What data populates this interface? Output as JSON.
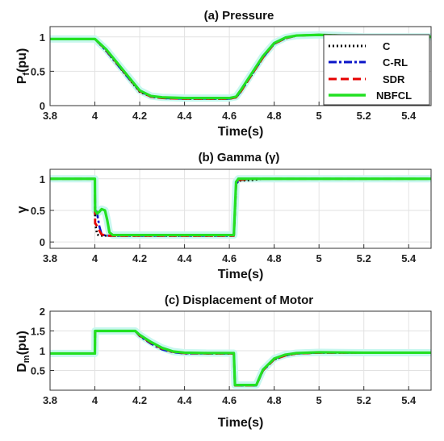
{
  "chart_data": [
    {
      "type": "line",
      "title": "(a) Pressure",
      "xlabel": "Time(s)",
      "ylabel": "P",
      "ylabel_sub": "f",
      "ylabel_suffix": "(pu)",
      "xlim": [
        3.8,
        5.5
      ],
      "ylim": [
        0,
        1.15
      ],
      "xticks": [
        "3.8",
        "4",
        "4.2",
        "4.4",
        "4.6",
        "4.8",
        "5",
        "5.2",
        "5.4"
      ],
      "xtick_values": [
        3.8,
        4.0,
        4.2,
        4.4,
        4.6,
        4.8,
        5.0,
        5.2,
        5.4
      ],
      "yticks": [
        "0",
        "0.5",
        "1"
      ],
      "ytick_values": [
        0,
        0.5,
        1
      ],
      "grid": true,
      "legend_position": "top-right",
      "legend": [
        "C",
        "C-RL",
        "SDR",
        "NBFCL"
      ],
      "series": [
        {
          "name": "C",
          "color": "#000000",
          "style": "dotted",
          "x": [
            3.8,
            4.0,
            4.05,
            4.1,
            4.15,
            4.2,
            4.25,
            4.3,
            4.4,
            4.5,
            4.6,
            4.63,
            4.65,
            4.7,
            4.75,
            4.8,
            4.85,
            4.9,
            5.0,
            5.1,
            5.2,
            5.5
          ],
          "y": [
            0.97,
            0.97,
            0.8,
            0.6,
            0.4,
            0.2,
            0.13,
            0.11,
            0.1,
            0.1,
            0.1,
            0.12,
            0.2,
            0.45,
            0.7,
            0.9,
            0.98,
            1.02,
            1.03,
            1.02,
            1.0,
            1.0
          ]
        },
        {
          "name": "C-RL",
          "color": "#0a14c8",
          "style": "dashdot",
          "x": [
            3.8,
            4.0,
            4.05,
            4.1,
            4.15,
            4.2,
            4.25,
            4.3,
            4.4,
            4.5,
            4.6,
            4.63,
            4.65,
            4.7,
            4.75,
            4.8,
            4.85,
            4.9,
            5.0,
            5.1,
            5.2,
            5.5
          ],
          "y": [
            0.97,
            0.97,
            0.8,
            0.6,
            0.4,
            0.21,
            0.13,
            0.11,
            0.1,
            0.1,
            0.1,
            0.12,
            0.2,
            0.45,
            0.7,
            0.9,
            0.98,
            1.02,
            1.03,
            1.02,
            1.0,
            1.0
          ]
        },
        {
          "name": "SDR",
          "color": "#e60000",
          "style": "dashed",
          "x": [
            3.8,
            4.0,
            4.05,
            4.1,
            4.15,
            4.2,
            4.25,
            4.3,
            4.4,
            4.5,
            4.6,
            4.63,
            4.65,
            4.7,
            4.75,
            4.8,
            4.85,
            4.9,
            5.0,
            5.1,
            5.2,
            5.5
          ],
          "y": [
            0.97,
            0.97,
            0.81,
            0.61,
            0.41,
            0.21,
            0.13,
            0.11,
            0.1,
            0.1,
            0.1,
            0.12,
            0.2,
            0.45,
            0.7,
            0.9,
            0.98,
            1.02,
            1.03,
            1.02,
            1.0,
            1.0
          ]
        },
        {
          "name": "NBFCL",
          "color": "#22e022",
          "style": "solid",
          "x": [
            3.8,
            4.0,
            4.05,
            4.1,
            4.15,
            4.2,
            4.25,
            4.3,
            4.4,
            4.5,
            4.6,
            4.63,
            4.65,
            4.7,
            4.75,
            4.8,
            4.85,
            4.9,
            5.0,
            5.1,
            5.2,
            5.5
          ],
          "y": [
            0.97,
            0.97,
            0.82,
            0.62,
            0.42,
            0.22,
            0.14,
            0.12,
            0.11,
            0.11,
            0.11,
            0.13,
            0.22,
            0.47,
            0.72,
            0.91,
            0.99,
            1.02,
            1.03,
            1.02,
            1.0,
            1.0
          ]
        }
      ]
    },
    {
      "type": "line",
      "title": "(b) Gamma (γ)",
      "xlabel": "Time(s)",
      "ylabel": "γ",
      "xlim": [
        3.8,
        5.5
      ],
      "ylim": [
        -0.1,
        1.15
      ],
      "xticks": [
        "3.8",
        "4",
        "4.2",
        "4.4",
        "4.6",
        "4.8",
        "5",
        "5.2",
        "5.4"
      ],
      "xtick_values": [
        3.8,
        4.0,
        4.2,
        4.4,
        4.6,
        4.8,
        5.0,
        5.2,
        5.4
      ],
      "yticks": [
        "0",
        "0.5",
        "1"
      ],
      "ytick_values": [
        0,
        0.5,
        1
      ],
      "grid": true,
      "series": [
        {
          "name": "C",
          "color": "#000000",
          "style": "dotted",
          "x": [
            3.8,
            4.0,
            4.001,
            4.01,
            4.02,
            4.04,
            4.06,
            4.1,
            4.3,
            4.5,
            4.62,
            4.63,
            4.64,
            4.7,
            4.75,
            5.0,
            5.5
          ],
          "y": [
            1,
            1,
            0.3,
            0.12,
            0.1,
            0.1,
            0.1,
            0.1,
            0.1,
            0.1,
            0.1,
            0.9,
            0.97,
            0.98,
            1,
            1,
            1
          ]
        },
        {
          "name": "C-RL",
          "color": "#0a14c8",
          "style": "dashdot",
          "x": [
            3.8,
            4.0,
            4.001,
            4.01,
            4.02,
            4.03,
            4.05,
            4.08,
            4.1,
            4.3,
            4.5,
            4.62,
            4.63,
            4.64,
            4.7,
            5.0,
            5.5
          ],
          "y": [
            1,
            1,
            0.55,
            0.45,
            0.25,
            0.12,
            0.1,
            0.1,
            0.1,
            0.1,
            0.1,
            0.1,
            0.9,
            0.98,
            1,
            1,
            1
          ]
        },
        {
          "name": "SDR",
          "color": "#e60000",
          "style": "dashed",
          "x": [
            3.8,
            4.0,
            4.001,
            4.01,
            4.02,
            4.03,
            4.05,
            4.08,
            4.1,
            4.3,
            4.5,
            4.62,
            4.63,
            4.64,
            4.7,
            5.0,
            5.5
          ],
          "y": [
            1,
            1,
            0.3,
            0.25,
            0.18,
            0.12,
            0.1,
            0.1,
            0.1,
            0.1,
            0.1,
            0.1,
            0.9,
            0.98,
            1,
            1,
            1
          ]
        },
        {
          "name": "NBFCL",
          "color": "#22e022",
          "style": "solid",
          "x": [
            3.8,
            4.0,
            4.001,
            4.01,
            4.02,
            4.03,
            4.045,
            4.055,
            4.065,
            4.08,
            4.1,
            4.3,
            4.5,
            4.62,
            4.63,
            4.64,
            4.7,
            5.0,
            5.5
          ],
          "y": [
            1,
            1,
            0.5,
            0.45,
            0.48,
            0.52,
            0.5,
            0.35,
            0.15,
            0.11,
            0.11,
            0.11,
            0.11,
            0.11,
            0.95,
            1,
            1,
            1,
            1
          ]
        }
      ]
    },
    {
      "type": "line",
      "title": "(c) Displacement of Motor",
      "xlabel": "Time(s)",
      "ylabel": "D",
      "ylabel_sub": "m",
      "ylabel_suffix": "(pu)",
      "xlim": [
        3.8,
        5.5
      ],
      "ylim": [
        0,
        2
      ],
      "xticks": [
        "3.8",
        "4",
        "4.2",
        "4.4",
        "4.6",
        "4.8",
        "5",
        "5.2",
        "5.4"
      ],
      "xtick_values": [
        3.8,
        4.0,
        4.2,
        4.4,
        4.6,
        4.8,
        5.0,
        5.2,
        5.4
      ],
      "yticks": [
        "0.5",
        "1",
        "1.5",
        "2"
      ],
      "ytick_values": [
        0.5,
        1,
        1.5,
        2
      ],
      "grid": true,
      "series": [
        {
          "name": "C",
          "color": "#000000",
          "style": "dotted",
          "x": [
            3.8,
            4.0,
            4.001,
            4.18,
            4.2,
            4.25,
            4.3,
            4.35,
            4.4,
            4.5,
            4.62,
            4.625,
            4.72,
            4.75,
            4.8,
            4.85,
            4.9,
            5.0,
            5.2,
            5.5
          ],
          "y": [
            0.93,
            0.93,
            1.5,
            1.5,
            1.38,
            1.2,
            1.05,
            0.97,
            0.94,
            0.93,
            0.93,
            0.12,
            0.12,
            0.5,
            0.78,
            0.88,
            0.93,
            0.95,
            0.95,
            0.95
          ]
        },
        {
          "name": "C-RL",
          "color": "#0a14c8",
          "style": "dashdot",
          "x": [
            3.8,
            4.0,
            4.001,
            4.18,
            4.2,
            4.25,
            4.3,
            4.35,
            4.4,
            4.5,
            4.62,
            4.625,
            4.72,
            4.75,
            4.8,
            4.85,
            4.9,
            5.0,
            5.2,
            5.5
          ],
          "y": [
            0.93,
            0.93,
            1.5,
            1.5,
            1.37,
            1.18,
            1.03,
            0.96,
            0.93,
            0.93,
            0.93,
            0.12,
            0.12,
            0.5,
            0.78,
            0.88,
            0.93,
            0.95,
            0.95,
            0.95
          ]
        },
        {
          "name": "SDR",
          "color": "#e60000",
          "style": "dashed",
          "x": [
            3.8,
            4.0,
            4.001,
            4.18,
            4.2,
            4.25,
            4.3,
            4.35,
            4.4,
            4.5,
            4.62,
            4.625,
            4.72,
            4.75,
            4.8,
            4.85,
            4.9,
            5.0,
            5.2,
            5.5
          ],
          "y": [
            0.93,
            0.93,
            1.5,
            1.5,
            1.38,
            1.2,
            1.05,
            0.97,
            0.94,
            0.93,
            0.93,
            0.12,
            0.12,
            0.5,
            0.78,
            0.88,
            0.93,
            0.95,
            0.95,
            0.95
          ]
        },
        {
          "name": "NBFCL",
          "color": "#22e022",
          "style": "solid",
          "x": [
            3.8,
            4.0,
            4.001,
            4.18,
            4.2,
            4.25,
            4.3,
            4.35,
            4.4,
            4.5,
            4.62,
            4.625,
            4.72,
            4.75,
            4.8,
            4.85,
            4.9,
            5.0,
            5.2,
            5.5
          ],
          "y": [
            0.93,
            0.93,
            1.5,
            1.5,
            1.4,
            1.22,
            1.07,
            0.98,
            0.95,
            0.94,
            0.94,
            0.13,
            0.13,
            0.52,
            0.8,
            0.9,
            0.94,
            0.96,
            0.95,
            0.95
          ]
        }
      ]
    }
  ]
}
